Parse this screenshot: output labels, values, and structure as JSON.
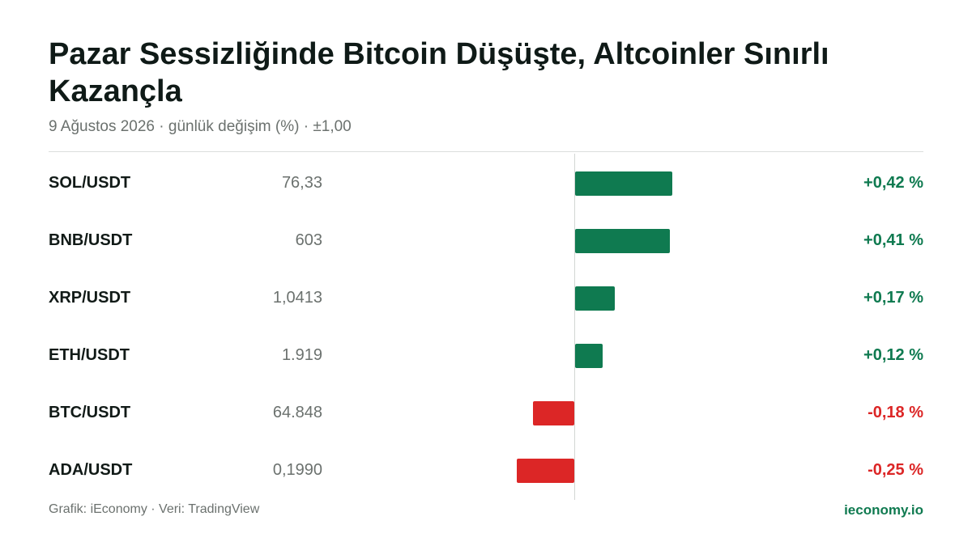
{
  "header": {
    "title": "Pazar Sessizliğinde Bitcoin Düşüşte, Altcoinler Sınırlı Kazançla",
    "subtitle": "9 Ağustos 2026 · günlük değişim (%) · ±1,00"
  },
  "footer": {
    "source": "Grafik: iEconomy · Veri: TradingView",
    "brand": "ieconomy.io"
  },
  "colors": {
    "positive": "#0f7a50",
    "negative": "#dc2626"
  },
  "chart_data": {
    "type": "bar",
    "orientation": "horizontal",
    "scale_label": "±1,00",
    "xlim": [
      -1,
      1
    ],
    "rows": [
      {
        "pair": "SOL/USDT",
        "price": "76,33",
        "value": 0.42,
        "label": "+0,42 %"
      },
      {
        "pair": "BNB/USDT",
        "price": "603",
        "value": 0.41,
        "label": "+0,41 %"
      },
      {
        "pair": "XRP/USDT",
        "price": "1,0413",
        "value": 0.17,
        "label": "+0,17 %"
      },
      {
        "pair": "ETH/USDT",
        "price": "1.919",
        "value": 0.12,
        "label": "+0,12 %"
      },
      {
        "pair": "BTC/USDT",
        "price": "64.848",
        "value": -0.18,
        "label": "-0,18 %"
      },
      {
        "pair": "ADA/USDT",
        "price": "0,1990",
        "value": -0.25,
        "label": "-0,25 %"
      }
    ]
  }
}
